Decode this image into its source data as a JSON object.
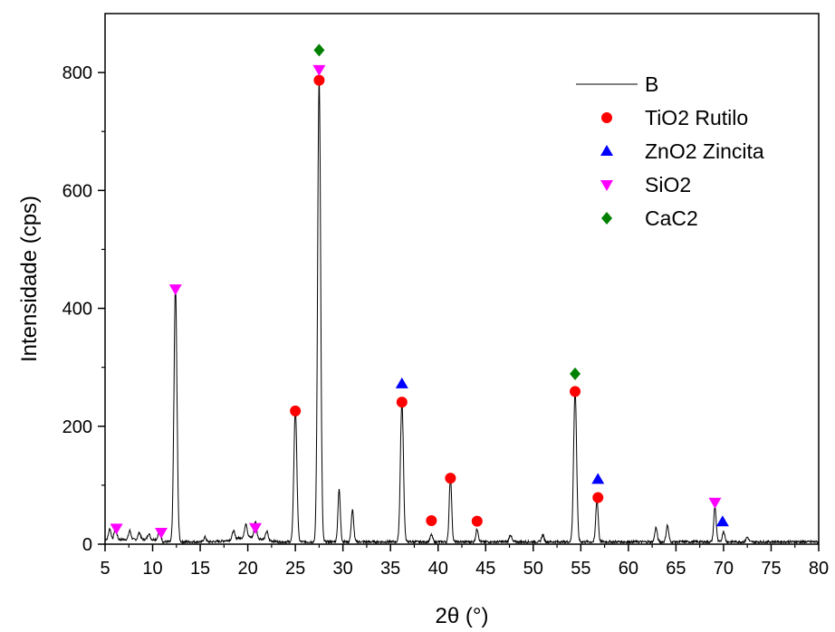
{
  "chart_data": {
    "type": "line",
    "xlabel": "2θ (°)",
    "ylabel": "Intensidade (cps)",
    "xlim": [
      5,
      80
    ],
    "ylim": [
      0,
      900
    ],
    "xticks": [
      "5",
      "10",
      "15",
      "20",
      "25",
      "30",
      "35",
      "40",
      "45",
      "50",
      "55",
      "60",
      "65",
      "70",
      "75",
      "80"
    ],
    "yticks": [
      "0",
      "200",
      "400",
      "600",
      "800"
    ],
    "grid": false,
    "legend_position": "top-right",
    "series": [
      {
        "name": "B",
        "kind": "line",
        "color": "#000000",
        "peaks": [
          {
            "x": 5.5,
            "y": 18
          },
          {
            "x": 6.1,
            "y": 22
          },
          {
            "x": 7.6,
            "y": 15
          },
          {
            "x": 8.6,
            "y": 12
          },
          {
            "x": 9.6,
            "y": 10
          },
          {
            "x": 10.7,
            "y": 14
          },
          {
            "x": 12.4,
            "y": 432
          },
          {
            "x": 15.5,
            "y": 8
          },
          {
            "x": 18.5,
            "y": 14
          },
          {
            "x": 19.8,
            "y": 24
          },
          {
            "x": 20.8,
            "y": 28
          },
          {
            "x": 22.0,
            "y": 15
          },
          {
            "x": 25.0,
            "y": 225
          },
          {
            "x": 27.5,
            "y": 788
          },
          {
            "x": 29.6,
            "y": 88
          },
          {
            "x": 31.0,
            "y": 54
          },
          {
            "x": 36.2,
            "y": 240
          },
          {
            "x": 39.3,
            "y": 12
          },
          {
            "x": 41.3,
            "y": 112
          },
          {
            "x": 44.1,
            "y": 22
          },
          {
            "x": 47.6,
            "y": 12
          },
          {
            "x": 51.0,
            "y": 12
          },
          {
            "x": 54.4,
            "y": 258
          },
          {
            "x": 56.7,
            "y": 72
          },
          {
            "x": 62.9,
            "y": 24
          },
          {
            "x": 64.1,
            "y": 28
          },
          {
            "x": 69.1,
            "y": 60
          },
          {
            "x": 70.0,
            "y": 18
          },
          {
            "x": 72.5,
            "y": 8
          }
        ]
      },
      {
        "name": "TiO2 Rutilo",
        "kind": "marker",
        "marker": "circle",
        "color": "#ff0000",
        "points": [
          {
            "x": 25.0,
            "y": 226
          },
          {
            "x": 27.5,
            "y": 787
          },
          {
            "x": 36.2,
            "y": 241
          },
          {
            "x": 39.3,
            "y": 40
          },
          {
            "x": 41.3,
            "y": 112
          },
          {
            "x": 44.1,
            "y": 39
          },
          {
            "x": 54.4,
            "y": 259
          },
          {
            "x": 56.8,
            "y": 79
          }
        ]
      },
      {
        "name": "ZnO2 Zincita",
        "kind": "marker",
        "marker": "triangle-up",
        "color": "#0000ff",
        "points": [
          {
            "x": 36.2,
            "y": 272
          },
          {
            "x": 56.8,
            "y": 110
          },
          {
            "x": 69.9,
            "y": 38
          }
        ]
      },
      {
        "name": "SiO2",
        "kind": "marker",
        "marker": "triangle-down",
        "color": "#ff00ff",
        "points": [
          {
            "x": 6.2,
            "y": 27
          },
          {
            "x": 10.9,
            "y": 20
          },
          {
            "x": 12.4,
            "y": 433
          },
          {
            "x": 20.8,
            "y": 28
          },
          {
            "x": 27.5,
            "y": 805
          },
          {
            "x": 69.1,
            "y": 71
          }
        ]
      },
      {
        "name": "CaC2",
        "kind": "marker",
        "marker": "diamond",
        "color": "#008000",
        "points": [
          {
            "x": 27.5,
            "y": 838
          },
          {
            "x": 54.4,
            "y": 289
          }
        ]
      }
    ]
  }
}
